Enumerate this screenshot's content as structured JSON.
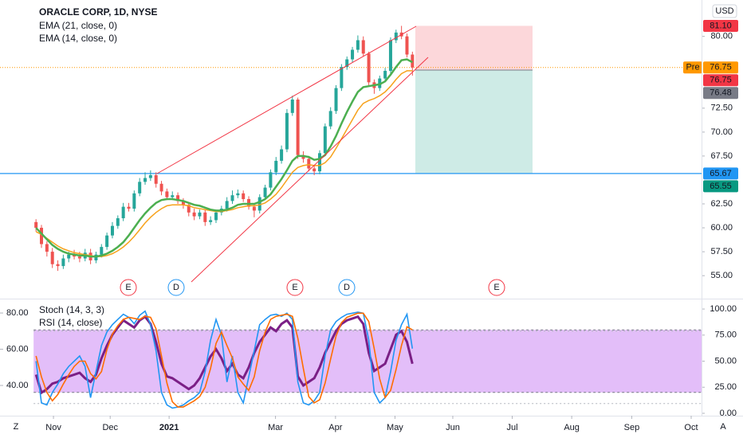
{
  "chart_data": [
    {
      "type": "candlestick",
      "title": "ORACLE CORP, 1D, NYSE",
      "currency": "USD",
      "up_color": "#26a69a",
      "down_color": "#ef5350",
      "open": [
        60.6,
        60.0,
        58.3,
        57.5,
        56.2,
        56.0,
        56.8,
        57.2,
        57.0,
        56.8,
        57.4,
        56.6,
        57.2,
        58.0,
        59.2,
        60.2,
        61.0,
        62.2,
        62.0,
        63.6,
        64.8,
        65.2,
        65.5,
        64.6,
        63.8,
        63.2,
        63.4,
        62.8,
        62.4,
        61.6,
        61.2,
        61.6,
        60.6,
        60.8,
        61.6,
        62.0,
        62.8,
        63.4,
        63.6,
        63.0,
        62.2,
        61.8,
        63.2,
        64.2,
        65.8,
        67.0,
        68.2,
        72.0,
        73.4,
        67.6,
        67.2,
        66.2,
        65.9,
        67.8,
        70.6,
        72.2,
        74.6,
        76.8,
        77.6,
        78.6,
        79.6,
        78.2,
        75.2,
        74.6,
        75.6,
        76.4,
        79.6,
        80.4,
        80.0,
        78.1
      ],
      "high": [
        60.9,
        60.3,
        58.6,
        57.9,
        56.6,
        57.2,
        57.5,
        57.7,
        57.5,
        57.8,
        57.8,
        57.5,
        58.3,
        59.5,
        60.6,
        61.3,
        62.6,
        62.6,
        63.9,
        65.2,
        65.8,
        66.0,
        65.8,
        64.9,
        64.1,
        63.8,
        63.7,
        63.1,
        62.7,
        62.0,
        61.9,
        61.9,
        61.2,
        61.9,
        62.3,
        63.2,
        63.9,
        64.0,
        63.9,
        63.3,
        62.5,
        63.5,
        64.5,
        66.1,
        67.4,
        68.6,
        72.4,
        73.8,
        73.6,
        68.0,
        67.5,
        66.5,
        68.1,
        70.9,
        72.6,
        74.9,
        77.1,
        77.9,
        78.9,
        80.1,
        80.0,
        78.4,
        75.5,
        75.9,
        76.7,
        79.9,
        80.7,
        81.1,
        80.3,
        78.4
      ],
      "low": [
        59.6,
        57.9,
        57.0,
        55.8,
        55.5,
        55.7,
        56.4,
        56.7,
        56.4,
        56.5,
        56.2,
        56.3,
        56.9,
        57.7,
        58.9,
        59.9,
        60.7,
        61.7,
        61.7,
        63.3,
        64.5,
        64.9,
        64.2,
        63.4,
        62.9,
        62.9,
        62.5,
        62.0,
        61.2,
        60.8,
        60.9,
        60.2,
        60.3,
        60.5,
        61.3,
        61.7,
        62.5,
        63.1,
        62.7,
        61.9,
        61.1,
        61.5,
        62.9,
        63.9,
        65.5,
        66.7,
        67.9,
        71.7,
        67.2,
        66.8,
        65.9,
        65.5,
        65.6,
        67.5,
        70.3,
        71.9,
        74.3,
        76.5,
        77.3,
        78.3,
        77.9,
        74.9,
        74.0,
        74.3,
        75.3,
        76.1,
        79.3,
        79.7,
        77.8,
        75.9
      ],
      "close": [
        60.0,
        58.3,
        57.5,
        56.2,
        56.0,
        56.8,
        57.2,
        57.0,
        56.8,
        57.4,
        56.6,
        57.2,
        58.0,
        59.2,
        60.2,
        61.0,
        62.2,
        62.0,
        63.6,
        64.8,
        65.2,
        65.5,
        64.6,
        63.8,
        63.2,
        63.4,
        62.8,
        62.4,
        61.6,
        61.2,
        61.6,
        60.6,
        60.8,
        61.6,
        62.0,
        62.8,
        63.4,
        63.6,
        63.0,
        62.2,
        61.8,
        63.2,
        64.2,
        65.8,
        67.0,
        68.2,
        72.0,
        73.4,
        67.6,
        67.2,
        66.2,
        65.9,
        67.8,
        70.6,
        72.2,
        74.6,
        76.8,
        77.6,
        78.6,
        79.6,
        78.2,
        75.2,
        74.6,
        75.6,
        76.4,
        79.6,
        80.4,
        80.0,
        78.1,
        76.75
      ],
      "series": [
        {
          "name": "EMA (21, close, 0)",
          "color": "#f7a21b",
          "values": [
            59.6,
            59.3,
            58.9,
            58.5,
            58.1,
            57.8,
            57.6,
            57.4,
            57.3,
            57.2,
            57.1,
            57.0,
            57.0,
            57.1,
            57.3,
            57.6,
            58.0,
            58.5,
            59.1,
            59.8,
            60.5,
            61.1,
            61.6,
            62.0,
            62.3,
            62.4,
            62.4,
            62.4,
            62.3,
            62.1,
            62.0,
            61.9,
            61.8,
            61.7,
            61.7,
            61.8,
            61.9,
            62.1,
            62.2,
            62.3,
            62.3,
            62.4,
            62.6,
            63.0,
            63.5,
            64.2,
            65.0,
            65.8,
            66.3,
            66.5,
            66.6,
            66.5,
            66.5,
            66.8,
            67.4,
            68.3,
            69.3,
            70.3,
            71.3,
            72.3,
            73.0,
            73.3,
            73.5,
            73.8,
            74.2,
            74.8,
            75.5,
            76.1,
            76.4,
            76.4
          ]
        },
        {
          "name": "EMA (14, close, 0)",
          "color": "#4caf50",
          "values": [
            60.0,
            59.4,
            58.8,
            58.2,
            57.8,
            57.5,
            57.3,
            57.2,
            57.1,
            57.1,
            57.0,
            57.0,
            57.1,
            57.3,
            57.6,
            58.0,
            58.5,
            59.2,
            60.0,
            60.8,
            61.5,
            62.1,
            62.6,
            62.9,
            63.0,
            63.0,
            62.9,
            62.8,
            62.6,
            62.4,
            62.3,
            62.1,
            61.9,
            61.8,
            61.8,
            61.9,
            62.1,
            62.4,
            62.5,
            62.5,
            62.5,
            62.7,
            63.0,
            63.5,
            64.3,
            65.1,
            66.0,
            67.0,
            67.5,
            67.5,
            67.4,
            67.1,
            67.2,
            67.6,
            68.5,
            69.6,
            70.9,
            72.1,
            73.2,
            74.2,
            74.7,
            74.8,
            74.9,
            75.0,
            75.3,
            76.0,
            76.8,
            77.5,
            77.6,
            77.3
          ]
        }
      ],
      "price_labels": [
        {
          "value": 81.1,
          "label": "81.10",
          "color": "#f23645"
        },
        {
          "value": 76.75,
          "label": "76.75",
          "tag": "Pre",
          "color": "#ff9800"
        },
        {
          "value": 76.75,
          "label": "76.75",
          "color": "#f23645"
        },
        {
          "value": 76.48,
          "label": "76.48",
          "color": "#787b86"
        },
        {
          "value": 65.67,
          "label": "65.67",
          "color": "#2196f3"
        },
        {
          "value": 65.55,
          "label": "65.55",
          "color": "#089981"
        }
      ],
      "events": [
        "E",
        "D",
        "E",
        "D",
        "E"
      ],
      "xlim": [
        -6.6,
        122
      ],
      "xticks": [
        {
          "value": 3.2,
          "label": "Nov"
        },
        {
          "value": 13.6,
          "label": "Dec"
        },
        {
          "value": 24.4,
          "label": "2021"
        },
        {
          "value": 43.9,
          "label": "Mar"
        },
        {
          "value": 54.9,
          "label": "Apr"
        },
        {
          "value": 65.8,
          "label": "May"
        },
        {
          "value": 76.4,
          "label": "Jun"
        },
        {
          "value": 87.3,
          "label": "Jul"
        },
        {
          "value": 98.2,
          "label": "Aug"
        },
        {
          "value": 109.2,
          "label": "Sep"
        },
        {
          "value": 120.1,
          "label": "Oct"
        }
      ],
      "ylim": [
        52.6,
        83.8
      ],
      "yticks": [
        {
          "value": 80,
          "label": "80.00"
        },
        {
          "value": 72.5,
          "label": "72.50"
        },
        {
          "value": 70,
          "label": "70.00"
        },
        {
          "value": 67.5,
          "label": "67.50"
        },
        {
          "value": 62.5,
          "label": "62.50"
        },
        {
          "value": 60,
          "label": "60.00"
        },
        {
          "value": 57.5,
          "label": "57.50"
        },
        {
          "value": 55,
          "label": "55.00"
        }
      ]
    },
    {
      "type": "line",
      "series": [
        {
          "name": "RSI (14, close)",
          "color": "#7b1f86",
          "values": [
            46,
            36,
            38,
            41,
            42,
            44,
            45,
            46,
            47,
            44,
            42,
            46,
            55,
            62,
            68,
            72,
            76,
            74,
            72,
            76,
            78,
            74,
            64,
            52,
            45,
            44,
            42,
            40,
            38,
            40,
            44,
            50,
            56,
            60,
            55,
            48,
            52,
            46,
            44,
            50,
            58,
            64,
            68,
            72,
            70,
            74,
            76,
            72,
            45,
            40,
            42,
            44,
            50,
            58,
            64,
            70,
            74,
            76,
            77,
            78,
            74,
            58,
            48,
            50,
            52,
            60,
            68,
            70,
            64,
            52
          ]
        },
        {
          "name": "Stoch (14, 3, 3)",
          "color": "#2196f3",
          "axis": "y2",
          "values": [
            50,
            10,
            8,
            20,
            28,
            38,
            45,
            50,
            55,
            45,
            15,
            40,
            65,
            78,
            85,
            90,
            95,
            92,
            86,
            94,
            98,
            85,
            60,
            20,
            8,
            5,
            6,
            8,
            12,
            15,
            20,
            40,
            70,
            90,
            75,
            30,
            55,
            20,
            10,
            35,
            60,
            85,
            90,
            94,
            95,
            93,
            96,
            90,
            30,
            10,
            8,
            12,
            20,
            55,
            80,
            88,
            92,
            95,
            96,
            97,
            96,
            70,
            20,
            10,
            15,
            40,
            70,
            85,
            95,
            62
          ]
        },
        {
          "color": "#ff6d00",
          "axis": "y2",
          "values": [
            55,
            35,
            20,
            12,
            18,
            28,
            37,
            45,
            50,
            50,
            38,
            33,
            40,
            61,
            76,
            84,
            90,
            92,
            91,
            90,
            93,
            92,
            81,
            55,
            29,
            11,
            6,
            6,
            9,
            12,
            16,
            25,
            43,
            67,
            78,
            65,
            53,
            35,
            28,
            22,
            35,
            60,
            78,
            90,
            93,
            94,
            95,
            93,
            72,
            43,
            16,
            10,
            13,
            29,
            52,
            74,
            87,
            92,
            94,
            96,
            96,
            88,
            62,
            33,
            15,
            22,
            42,
            65,
            83,
            80
          ]
        }
      ],
      "stoch_band": [
        20,
        80
      ],
      "rsi_band": [
        30,
        70
      ],
      "band_color": "#d9a8f7",
      "xlim": [
        -6.6,
        122
      ],
      "ylim": [
        23.3,
        87.5
      ],
      "yticks": [
        {
          "value": 80,
          "label": "80.00"
        },
        {
          "value": 60,
          "label": "60.00"
        },
        {
          "value": 40,
          "label": "40.00"
        }
      ],
      "y2lim": [
        -2.3,
        109.2
      ],
      "y2ticks": [
        {
          "value": 100,
          "label": "100.00"
        },
        {
          "value": 75,
          "label": "75.00"
        },
        {
          "value": 50,
          "label": "50.00"
        },
        {
          "value": 25,
          "label": "25.00"
        },
        {
          "value": 0,
          "label": "0.00"
        }
      ]
    }
  ],
  "controls": {
    "left": "Z",
    "right": "A"
  }
}
